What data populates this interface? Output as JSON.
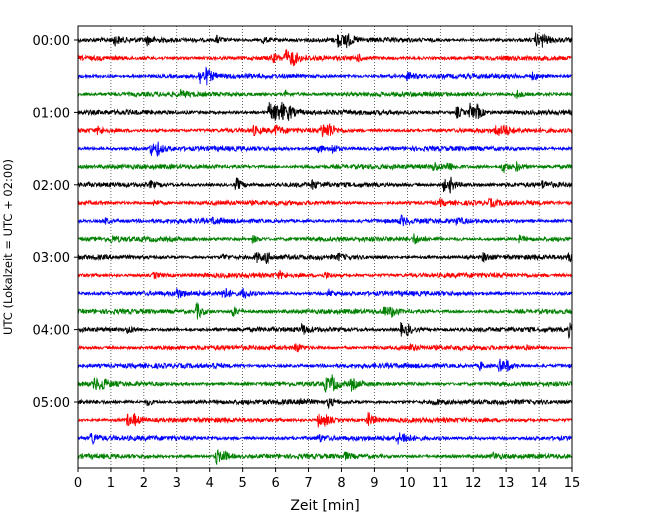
{
  "chart_data": {
    "type": "line",
    "title": "",
    "xlabel": "Zeit  [min]",
    "ylabel": "UTC (Lokalzeit = UTC + 02:00)",
    "xlim": [
      0,
      15
    ],
    "x_ticks": [
      "0",
      "1",
      "2",
      "3",
      "4",
      "5",
      "6",
      "7",
      "8",
      "9",
      "10",
      "11",
      "12",
      "13",
      "14",
      "15"
    ],
    "y_ticks": [
      "00:00",
      "01:00",
      "02:00",
      "03:00",
      "04:00",
      "05:00"
    ],
    "grid": "vertical dotted at each minute",
    "trace_colors": [
      "#000000",
      "#ff0000",
      "#0000ff",
      "#008000"
    ],
    "traces": [
      {
        "row": 0,
        "color": "#000000",
        "events": [
          [
            1.1,
            0.6
          ],
          [
            2.1,
            0.5
          ],
          [
            4.2,
            0.5
          ],
          [
            5.6,
            0.5
          ],
          [
            7.9,
            0.9
          ],
          [
            8.1,
            1.0
          ],
          [
            13.9,
            0.8
          ],
          [
            14.1,
            0.7
          ]
        ]
      },
      {
        "row": 1,
        "color": "#ff0000",
        "events": [
          [
            5.9,
            0.5
          ],
          [
            6.3,
            1.0
          ],
          [
            6.5,
            0.8
          ],
          [
            8.5,
            0.4
          ]
        ]
      },
      {
        "row": 2,
        "color": "#0000ff",
        "events": [
          [
            3.7,
            1.0
          ],
          [
            3.9,
            0.7
          ],
          [
            10.0,
            0.6
          ],
          [
            13.8,
            0.4
          ]
        ]
      },
      {
        "row": 3,
        "color": "#008000",
        "events": [
          [
            3.1,
            0.4
          ],
          [
            6.3,
            0.4
          ],
          [
            13.3,
            0.6
          ]
        ]
      },
      {
        "row": 4,
        "color": "#000000",
        "events": [
          [
            5.8,
            1.3
          ],
          [
            6.0,
            1.2
          ],
          [
            6.2,
            0.9
          ],
          [
            6.4,
            0.6
          ],
          [
            11.5,
            0.8
          ],
          [
            11.9,
            1.1
          ],
          [
            12.1,
            0.8
          ]
        ]
      },
      {
        "row": 5,
        "color": "#ff0000",
        "events": [
          [
            0.6,
            0.5
          ],
          [
            5.3,
            0.6
          ],
          [
            6.0,
            0.6
          ],
          [
            7.4,
            1.0
          ],
          [
            7.6,
            0.9
          ],
          [
            12.7,
            0.8
          ],
          [
            12.9,
            0.6
          ]
        ]
      },
      {
        "row": 6,
        "color": "#0000ff",
        "events": [
          [
            2.2,
            0.9
          ],
          [
            2.4,
            0.7
          ],
          [
            7.3,
            0.6
          ],
          [
            7.7,
            0.7
          ]
        ]
      },
      {
        "row": 7,
        "color": "#008000",
        "events": [
          [
            10.8,
            0.6
          ],
          [
            11.2,
            0.6
          ],
          [
            12.9,
            0.8
          ],
          [
            13.3,
            0.6
          ]
        ]
      },
      {
        "row": 8,
        "color": "#000000",
        "events": [
          [
            2.2,
            0.4
          ],
          [
            4.8,
            0.9
          ],
          [
            7.1,
            0.5
          ],
          [
            11.1,
            0.8
          ],
          [
            11.3,
            0.8
          ],
          [
            14.1,
            0.4
          ]
        ]
      },
      {
        "row": 9,
        "color": "#ff0000",
        "events": [
          [
            2.3,
            0.4
          ],
          [
            11.0,
            0.4
          ],
          [
            12.5,
            0.4
          ]
        ]
      },
      {
        "row": 10,
        "color": "#0000ff",
        "events": [
          [
            0.8,
            0.4
          ],
          [
            4.1,
            0.4
          ],
          [
            9.8,
            0.6
          ],
          [
            11.5,
            0.4
          ]
        ]
      },
      {
        "row": 11,
        "color": "#008000",
        "events": [
          [
            1.0,
            0.4
          ],
          [
            5.3,
            0.5
          ],
          [
            10.2,
            0.6
          ],
          [
            13.4,
            0.4
          ]
        ]
      },
      {
        "row": 12,
        "color": "#000000",
        "events": [
          [
            4.4,
            0.4
          ],
          [
            5.4,
            0.7
          ],
          [
            5.7,
            0.6
          ],
          [
            7.9,
            0.4
          ],
          [
            12.3,
            0.5
          ],
          [
            14.9,
            0.5
          ]
        ]
      },
      {
        "row": 13,
        "color": "#ff0000",
        "events": [
          [
            2.3,
            0.4
          ],
          [
            6.1,
            0.4
          ],
          [
            7.5,
            0.4
          ]
        ]
      },
      {
        "row": 14,
        "color": "#0000ff",
        "events": [
          [
            3.0,
            0.6
          ],
          [
            4.4,
            0.9
          ],
          [
            5.0,
            0.7
          ],
          [
            7.6,
            0.5
          ]
        ]
      },
      {
        "row": 15,
        "color": "#008000",
        "events": [
          [
            3.6,
            1.1
          ],
          [
            4.7,
            0.7
          ],
          [
            9.3,
            0.6
          ],
          [
            9.5,
            0.5
          ]
        ]
      },
      {
        "row": 16,
        "color": "#000000",
        "events": [
          [
            1.5,
            0.5
          ],
          [
            6.8,
            0.6
          ],
          [
            9.8,
            0.8
          ],
          [
            10.0,
            0.6
          ],
          [
            14.9,
            0.8
          ]
        ]
      },
      {
        "row": 17,
        "color": "#ff0000",
        "events": [
          [
            6.6,
            0.7
          ],
          [
            10.1,
            0.4
          ],
          [
            13.6,
            0.4
          ]
        ]
      },
      {
        "row": 18,
        "color": "#0000ff",
        "events": [
          [
            4.1,
            0.4
          ],
          [
            12.2,
            0.5
          ],
          [
            12.8,
            1.0
          ],
          [
            13.0,
            0.6
          ]
        ]
      },
      {
        "row": 19,
        "color": "#008000",
        "events": [
          [
            0.5,
            0.8
          ],
          [
            0.7,
            0.7
          ],
          [
            7.5,
            0.9
          ],
          [
            7.7,
            0.8
          ],
          [
            8.3,
            0.7
          ]
        ]
      },
      {
        "row": 20,
        "color": "#000000",
        "events": [
          [
            2.1,
            0.4
          ],
          [
            6.7,
            0.6
          ],
          [
            7.6,
            0.6
          ],
          [
            10.8,
            0.4
          ]
        ]
      },
      {
        "row": 21,
        "color": "#ff0000",
        "events": [
          [
            1.5,
            0.8
          ],
          [
            1.7,
            0.6
          ],
          [
            7.3,
            0.9
          ],
          [
            7.5,
            0.6
          ],
          [
            8.8,
            1.0
          ]
        ]
      },
      {
        "row": 22,
        "color": "#0000ff",
        "events": [
          [
            0.4,
            0.9
          ],
          [
            7.3,
            0.5
          ],
          [
            9.7,
            0.7
          ],
          [
            9.9,
            0.5
          ]
        ]
      },
      {
        "row": 23,
        "color": "#008000",
        "events": [
          [
            4.2,
            1.0
          ],
          [
            4.4,
            0.6
          ],
          [
            8.1,
            0.4
          ],
          [
            12.6,
            0.4
          ]
        ]
      }
    ]
  }
}
